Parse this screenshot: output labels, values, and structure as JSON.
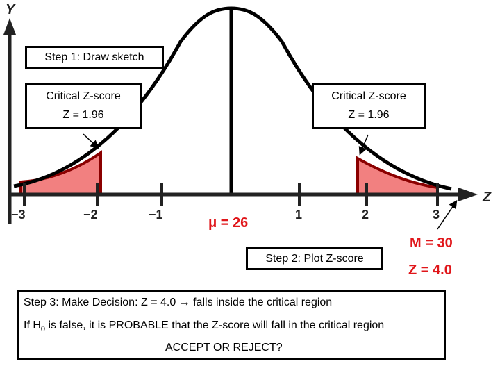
{
  "axes": {
    "y_label": "Y",
    "x_label": "Z",
    "tick_labels": [
      "−3",
      "−2",
      "−1",
      "1",
      "2",
      "3"
    ]
  },
  "colors": {
    "curve": "#000000",
    "critical_fill": "#f28080",
    "critical_edge": "#8b0000",
    "red_text": "#e0161a"
  },
  "step1": {
    "label": "Step 1: Draw sketch"
  },
  "left_box": {
    "title": "Critical Z-score",
    "value": "Z = 1.96"
  },
  "right_box": {
    "title": "Critical Z-score",
    "value": "Z = 1.96"
  },
  "mu_label": "μ = 26",
  "step2": {
    "label": "Step 2: Plot Z-score"
  },
  "m_label": "M = 30",
  "z_label": "Z = 4.0",
  "step3": {
    "line1": "Step 3: Make Decision:  Z = 4.0 → falls inside the critical region",
    "line2_prefix": "If H",
    "line2_sub": "0",
    "line2_suffix": " is false, it is PROBABLE that the Z-score will fall in the critical region",
    "line3": "ACCEPT OR REJECT?"
  }
}
